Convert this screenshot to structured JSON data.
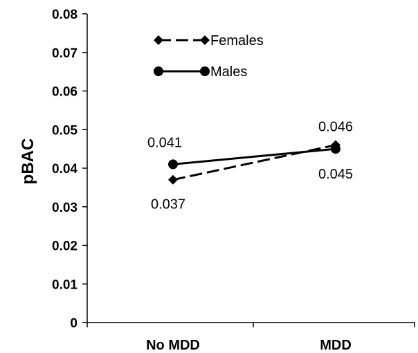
{
  "chart_data": {
    "type": "line",
    "title": "",
    "xlabel": "",
    "ylabel": "pBAC",
    "categories": [
      "No MDD",
      "MDD"
    ],
    "ylim": [
      0,
      0.08
    ],
    "yticks": [
      "0",
      "0.01",
      "0.02",
      "0.03",
      "0.04",
      "0.05",
      "0.06",
      "0.07",
      "0.08"
    ],
    "legend_position": "top-left",
    "series": [
      {
        "name": "Females",
        "values": [
          0.037,
          0.046
        ],
        "labels": [
          "0.037",
          "0.046"
        ],
        "marker": "diamond",
        "line_style": "dashed",
        "color": "#000000"
      },
      {
        "name": "Males",
        "values": [
          0.041,
          0.045
        ],
        "labels": [
          "0.041",
          "0.045"
        ],
        "marker": "circle",
        "line_style": "solid",
        "color": "#000000"
      }
    ]
  }
}
